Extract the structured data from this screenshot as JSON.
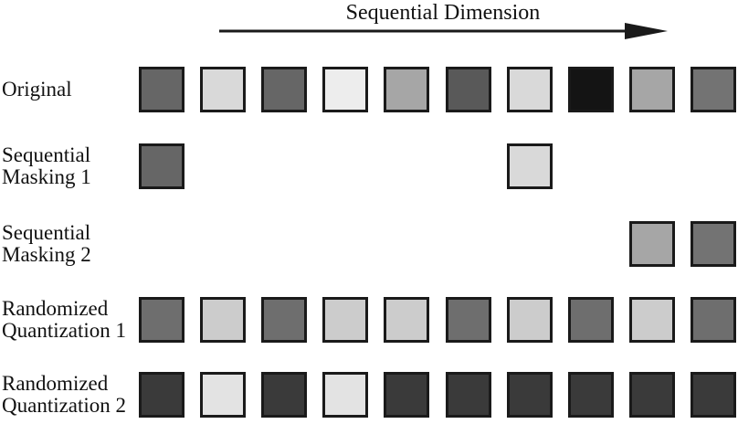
{
  "title": "Sequential Dimension",
  "arrow": {
    "direction": "right",
    "color": "#1a1a1a"
  },
  "palette": {
    "square_border": "#1a1a1a",
    "background": "#ffffff"
  },
  "grid": {
    "columns": 10,
    "rows": [
      {
        "label": "Original",
        "cells": [
          "#666666",
          "#d9d9d9",
          "#666666",
          "#ededed",
          "#a6a6a6",
          "#595959",
          "#d9d9d9",
          "#141414",
          "#a6a6a6",
          "#737373"
        ]
      },
      {
        "label": "Sequential Masking 1",
        "cells": [
          "#666666",
          null,
          null,
          null,
          null,
          null,
          "#d9d9d9",
          null,
          null,
          null
        ]
      },
      {
        "label": "Sequential Masking 2",
        "cells": [
          null,
          null,
          null,
          null,
          null,
          null,
          null,
          null,
          "#a6a6a6",
          "#737373"
        ]
      },
      {
        "label": "Randomized Quantization 1",
        "cells": [
          "#6e6e6e",
          "#cccccc",
          "#6e6e6e",
          "#cccccc",
          "#cccccc",
          "#6e6e6e",
          "#cccccc",
          "#6e6e6e",
          "#cccccc",
          "#6e6e6e"
        ]
      },
      {
        "label": "Randomized Quantization 2",
        "cells": [
          "#3a3a3a",
          "#e3e3e3",
          "#3a3a3a",
          "#e3e3e3",
          "#3a3a3a",
          "#3a3a3a",
          "#3a3a3a",
          "#3a3a3a",
          "#3a3a3a",
          "#3a3a3a"
        ]
      }
    ]
  }
}
